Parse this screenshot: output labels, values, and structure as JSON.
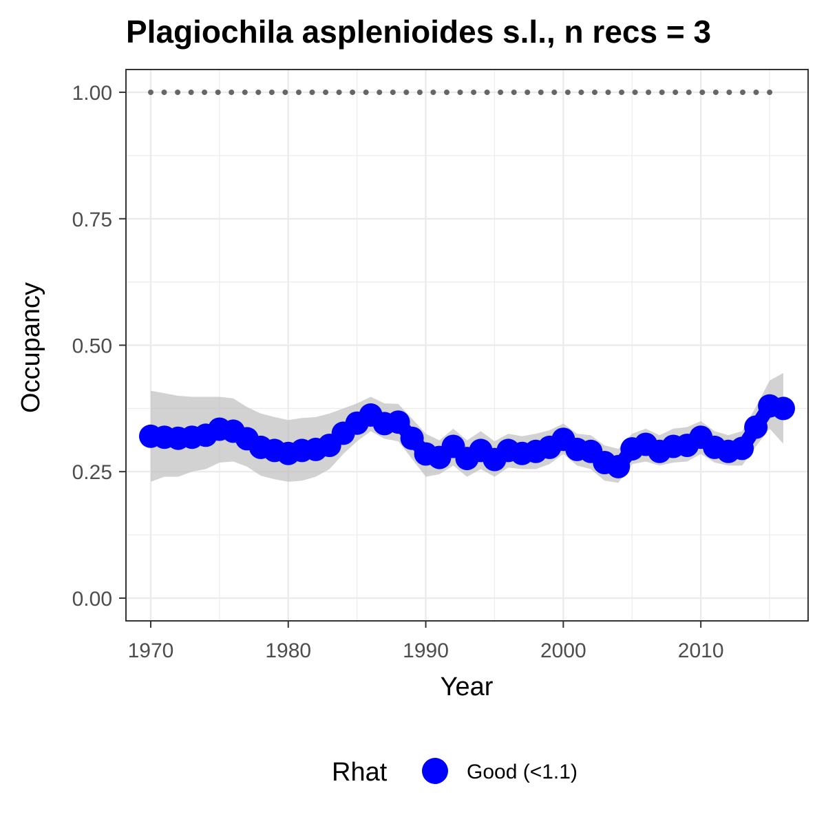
{
  "chart_data": {
    "type": "line",
    "title": "Plagiochila asplenioides s.l., n recs = 3",
    "xlabel": "Year",
    "ylabel": "Occupancy",
    "xlim": [
      1968.2,
      2017.8
    ],
    "ylim": [
      -0.045,
      1.045
    ],
    "x_ticks": [
      1970,
      1980,
      1990,
      2000,
      2010
    ],
    "y_ticks": [
      0,
      0.25,
      0.5,
      0.75,
      1.0
    ],
    "x_tick_labels": [
      "1970",
      "1980",
      "1990",
      "2000",
      "2010"
    ],
    "y_tick_labels": [
      "0.00",
      "0.25",
      "0.50",
      "0.75",
      "1.00"
    ],
    "grid": true,
    "legend": {
      "position": "bottom",
      "title": "Rhat",
      "entries": [
        {
          "label": "Good (<1.1)",
          "color": "#0000ff"
        }
      ]
    },
    "colors": {
      "mean": "#0000ff",
      "ribbon": "#bfbfbf",
      "reference": "#666666"
    },
    "x": [
      1970,
      1971,
      1972,
      1973,
      1974,
      1975,
      1976,
      1977,
      1978,
      1979,
      1980,
      1981,
      1982,
      1983,
      1984,
      1985,
      1986,
      1987,
      1988,
      1989,
      1990,
      1991,
      1992,
      1993,
      1994,
      1995,
      1996,
      1997,
      1998,
      1999,
      2000,
      2001,
      2002,
      2003,
      2004,
      2005,
      2006,
      2007,
      2008,
      2009,
      2010,
      2011,
      2012,
      2013,
      2014,
      2015,
      2016
    ],
    "series": [
      {
        "name": "Good (<1.1)",
        "values": [
          0.32,
          0.318,
          0.316,
          0.318,
          0.322,
          0.334,
          0.33,
          0.315,
          0.298,
          0.292,
          0.286,
          0.292,
          0.294,
          0.302,
          0.326,
          0.346,
          0.362,
          0.345,
          0.348,
          0.316,
          0.285,
          0.278,
          0.3,
          0.276,
          0.292,
          0.274,
          0.292,
          0.286,
          0.29,
          0.298,
          0.314,
          0.294,
          0.29,
          0.268,
          0.26,
          0.295,
          0.304,
          0.29,
          0.3,
          0.302,
          0.318,
          0.298,
          0.29,
          0.296,
          0.338,
          0.38,
          0.375
        ],
        "lower": [
          0.23,
          0.24,
          0.24,
          0.25,
          0.255,
          0.268,
          0.27,
          0.26,
          0.242,
          0.235,
          0.23,
          0.232,
          0.24,
          0.255,
          0.285,
          0.31,
          0.33,
          0.315,
          0.31,
          0.275,
          0.24,
          0.245,
          0.262,
          0.24,
          0.255,
          0.24,
          0.258,
          0.255,
          0.255,
          0.265,
          0.285,
          0.262,
          0.255,
          0.232,
          0.228,
          0.265,
          0.27,
          0.262,
          0.268,
          0.27,
          0.285,
          0.268,
          0.262,
          0.262,
          0.3,
          0.335,
          0.305
        ],
        "upper": [
          0.41,
          0.405,
          0.4,
          0.398,
          0.398,
          0.398,
          0.395,
          0.378,
          0.365,
          0.358,
          0.352,
          0.356,
          0.358,
          0.365,
          0.375,
          0.385,
          0.398,
          0.385,
          0.384,
          0.355,
          0.325,
          0.312,
          0.335,
          0.312,
          0.33,
          0.31,
          0.325,
          0.32,
          0.325,
          0.332,
          0.345,
          0.325,
          0.322,
          0.302,
          0.295,
          0.325,
          0.335,
          0.322,
          0.335,
          0.338,
          0.35,
          0.33,
          0.322,
          0.33,
          0.378,
          0.43,
          0.445
        ]
      }
    ],
    "reference_line": {
      "y": 1.0,
      "x_start": 1970,
      "x_end": 2015
    }
  }
}
